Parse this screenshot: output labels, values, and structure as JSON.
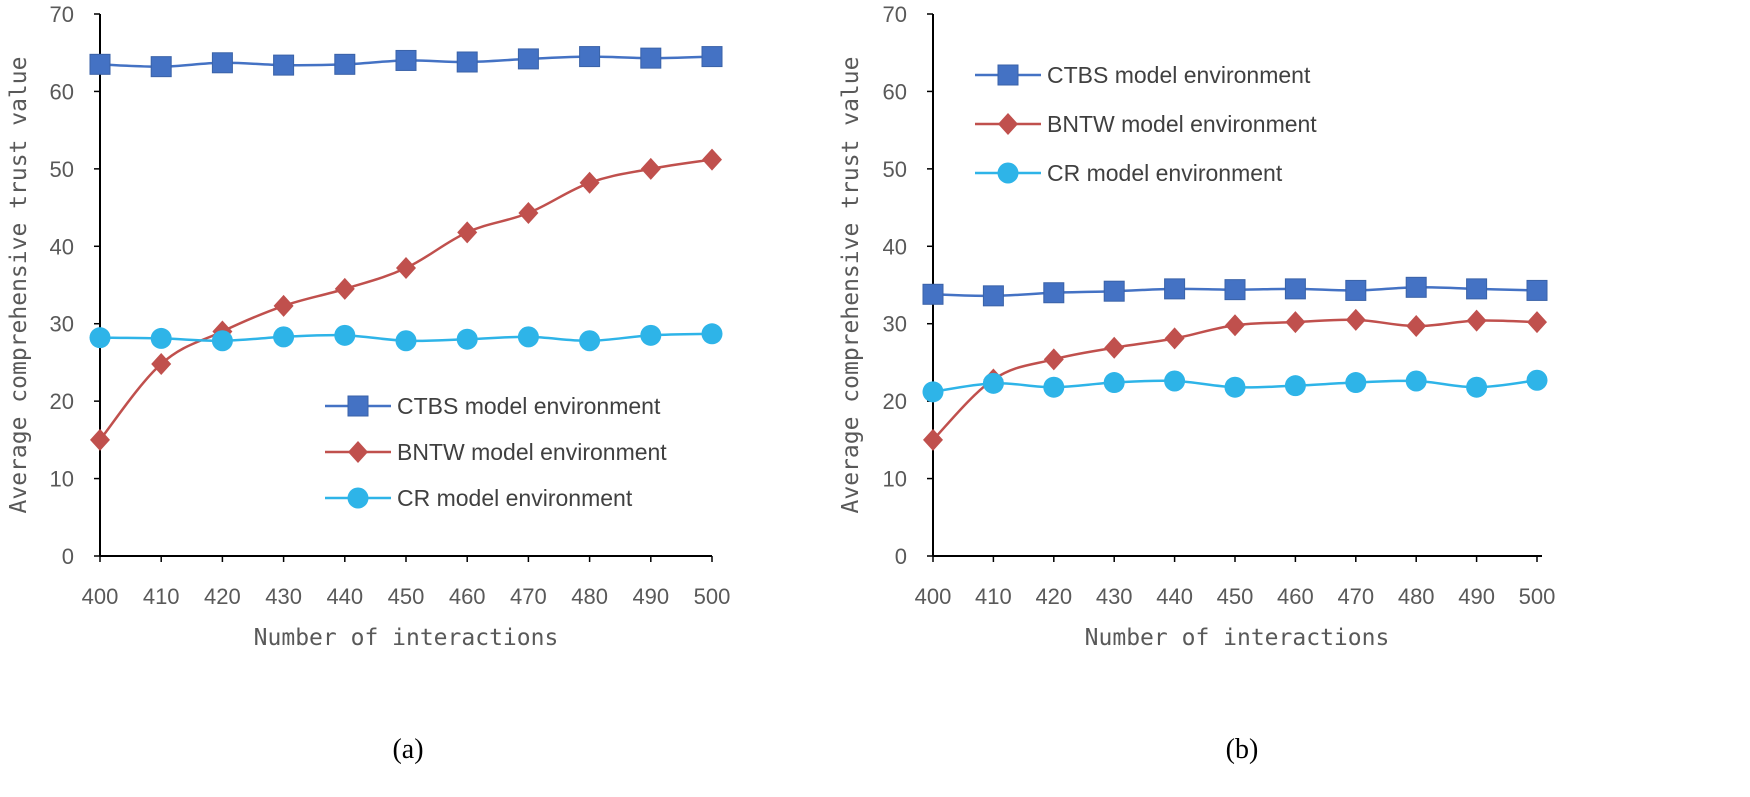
{
  "chart_data": [
    {
      "type": "line",
      "panel": "a",
      "caption": "(a)",
      "xlabel": "Number of interactions",
      "ylabel": "Average comprehensive trust value",
      "x": [
        400,
        410,
        420,
        430,
        440,
        450,
        460,
        470,
        480,
        490,
        500
      ],
      "xtick_labels": [
        "400",
        "410",
        "420",
        "430",
        "440",
        "450",
        "460",
        "470",
        "480",
        "490",
        "500"
      ],
      "xlim": [
        400,
        500
      ],
      "ylim": [
        0,
        70
      ],
      "yticks": [
        0,
        10,
        20,
        30,
        40,
        50,
        60,
        70
      ],
      "ytick_labels": [
        "0",
        "10",
        "20",
        "30",
        "40",
        "50",
        "60",
        "70"
      ],
      "legend_position": "middle-right",
      "series": [
        {
          "name": "CTBS model environment",
          "color": "#4472C4",
          "marker": "square",
          "values": [
            63.5,
            63.2,
            63.7,
            63.4,
            63.5,
            64.0,
            63.8,
            64.2,
            64.5,
            64.3,
            64.5
          ]
        },
        {
          "name": "BNTW model environment",
          "color": "#C0504D",
          "marker": "diamond",
          "values": [
            15.0,
            24.8,
            29.0,
            32.3,
            34.5,
            37.2,
            41.8,
            44.3,
            48.2,
            50.0,
            51.2
          ]
        },
        {
          "name": "CR model environment",
          "color": "#2EB4E8",
          "marker": "circle",
          "values": [
            28.2,
            28.1,
            27.8,
            28.3,
            28.5,
            27.8,
            28.0,
            28.3,
            27.8,
            28.5,
            28.7
          ]
        }
      ]
    },
    {
      "type": "line",
      "panel": "b",
      "caption": "(b)",
      "xlabel": "Number of interactions",
      "ylabel": "Average comprehensive trust value",
      "x": [
        400,
        410,
        420,
        430,
        440,
        450,
        460,
        470,
        480,
        490,
        500
      ],
      "xtick_labels": [
        "400",
        "410",
        "420",
        "430",
        "440",
        "450",
        "460",
        "470",
        "480",
        "490",
        "500"
      ],
      "xlim": [
        400,
        500
      ],
      "ylim": [
        0,
        70
      ],
      "yticks": [
        0,
        10,
        20,
        30,
        40,
        50,
        60,
        70
      ],
      "ytick_labels": [
        "0",
        "10",
        "20",
        "30",
        "40",
        "50",
        "60",
        "70"
      ],
      "legend_position": "top-left",
      "series": [
        {
          "name": "CTBS model environment",
          "color": "#4472C4",
          "marker": "square",
          "values": [
            33.8,
            33.6,
            34.0,
            34.2,
            34.5,
            34.4,
            34.5,
            34.3,
            34.7,
            34.5,
            34.3
          ]
        },
        {
          "name": "BNTW model environment",
          "color": "#C0504D",
          "marker": "diamond",
          "values": [
            15.0,
            22.8,
            25.4,
            26.9,
            28.1,
            29.8,
            30.2,
            30.5,
            29.7,
            30.4,
            30.2
          ]
        },
        {
          "name": "CR model environment",
          "color": "#2EB4E8",
          "marker": "circle",
          "values": [
            21.2,
            22.3,
            21.8,
            22.4,
            22.6,
            21.8,
            22.0,
            22.4,
            22.6,
            21.8,
            22.7
          ]
        }
      ]
    }
  ]
}
